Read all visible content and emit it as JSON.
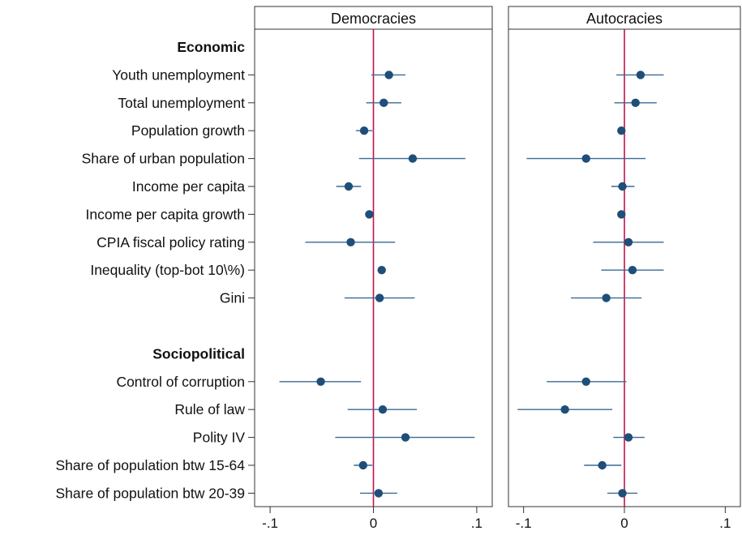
{
  "chart_data": {
    "type": "scatter",
    "subtype": "coefficient-plot",
    "panels": [
      "Democracies",
      "Autocracies"
    ],
    "xticks": [
      -0.1,
      0,
      0.1
    ],
    "xtick_labels": [
      "-.1",
      "0",
      ".1"
    ],
    "xlim": [
      -0.115,
      0.115
    ],
    "reference_line": 0,
    "colors": {
      "marker": "#1f4e79",
      "ci": "#3a6a96",
      "zero_line": "#c0144c",
      "header_band": "#ffffff",
      "frame": "#333333"
    },
    "rows": [
      {
        "label": "Economic",
        "header": true
      },
      {
        "label": "Youth unemployment"
      },
      {
        "label": "Total unemployment"
      },
      {
        "label": "Population growth"
      },
      {
        "label": "Share of urban population"
      },
      {
        "label": "Income per capita"
      },
      {
        "label": "Income per capita growth"
      },
      {
        "label": "CPIA fiscal policy rating"
      },
      {
        "label": "Inequality (top-bot 10\\%)"
      },
      {
        "label": "Gini"
      },
      {
        "label": "",
        "spacer": true
      },
      {
        "label": "Sociopolitical",
        "header": true
      },
      {
        "label": "Control of corruption"
      },
      {
        "label": "Rule of law"
      },
      {
        "label": "Polity IV"
      },
      {
        "label": "Share of population btw 15-64"
      },
      {
        "label": "Share of population btw 20-39"
      }
    ],
    "series": [
      {
        "name": "Democracies",
        "points": [
          {
            "row": 1,
            "est": 0.015,
            "lo": -0.002,
            "hi": 0.031
          },
          {
            "row": 2,
            "est": 0.01,
            "lo": -0.007,
            "hi": 0.027
          },
          {
            "row": 3,
            "est": -0.009,
            "lo": -0.017,
            "hi": -0.001
          },
          {
            "row": 4,
            "est": 0.038,
            "lo": -0.014,
            "hi": 0.089
          },
          {
            "row": 5,
            "est": -0.024,
            "lo": -0.036,
            "hi": -0.012
          },
          {
            "row": 6,
            "est": -0.004,
            "lo": -0.008,
            "hi": 0.0
          },
          {
            "row": 7,
            "est": -0.022,
            "lo": -0.066,
            "hi": 0.021
          },
          {
            "row": 8,
            "est": 0.008,
            "lo": 0.004,
            "hi": 0.012
          },
          {
            "row": 9,
            "est": 0.006,
            "lo": -0.028,
            "hi": 0.04
          },
          {
            "row": 12,
            "est": -0.051,
            "lo": -0.091,
            "hi": -0.012
          },
          {
            "row": 13,
            "est": 0.009,
            "lo": -0.025,
            "hi": 0.042
          },
          {
            "row": 14,
            "est": 0.031,
            "lo": -0.037,
            "hi": 0.098
          },
          {
            "row": 15,
            "est": -0.01,
            "lo": -0.019,
            "hi": -0.001
          },
          {
            "row": 16,
            "est": 0.005,
            "lo": -0.013,
            "hi": 0.023
          }
        ]
      },
      {
        "name": "Autocracies",
        "points": [
          {
            "row": 1,
            "est": 0.016,
            "lo": -0.008,
            "hi": 0.039
          },
          {
            "row": 2,
            "est": 0.011,
            "lo": -0.01,
            "hi": 0.032
          },
          {
            "row": 3,
            "est": -0.003,
            "lo": -0.007,
            "hi": 0.001
          },
          {
            "row": 4,
            "est": -0.038,
            "lo": -0.097,
            "hi": 0.021
          },
          {
            "row": 5,
            "est": -0.002,
            "lo": -0.013,
            "hi": 0.01
          },
          {
            "row": 6,
            "est": -0.003,
            "lo": -0.005,
            "hi": -0.001
          },
          {
            "row": 7,
            "est": 0.004,
            "lo": -0.031,
            "hi": 0.039
          },
          {
            "row": 8,
            "est": 0.008,
            "lo": -0.023,
            "hi": 0.039
          },
          {
            "row": 9,
            "est": -0.018,
            "lo": -0.053,
            "hi": 0.017
          },
          {
            "row": 12,
            "est": -0.038,
            "lo": -0.077,
            "hi": 0.002
          },
          {
            "row": 13,
            "est": -0.059,
            "lo": -0.106,
            "hi": -0.012
          },
          {
            "row": 14,
            "est": 0.004,
            "lo": -0.011,
            "hi": 0.02
          },
          {
            "row": 15,
            "est": -0.022,
            "lo": -0.04,
            "hi": -0.003
          },
          {
            "row": 16,
            "est": -0.002,
            "lo": -0.017,
            "hi": 0.013
          }
        ]
      }
    ]
  }
}
